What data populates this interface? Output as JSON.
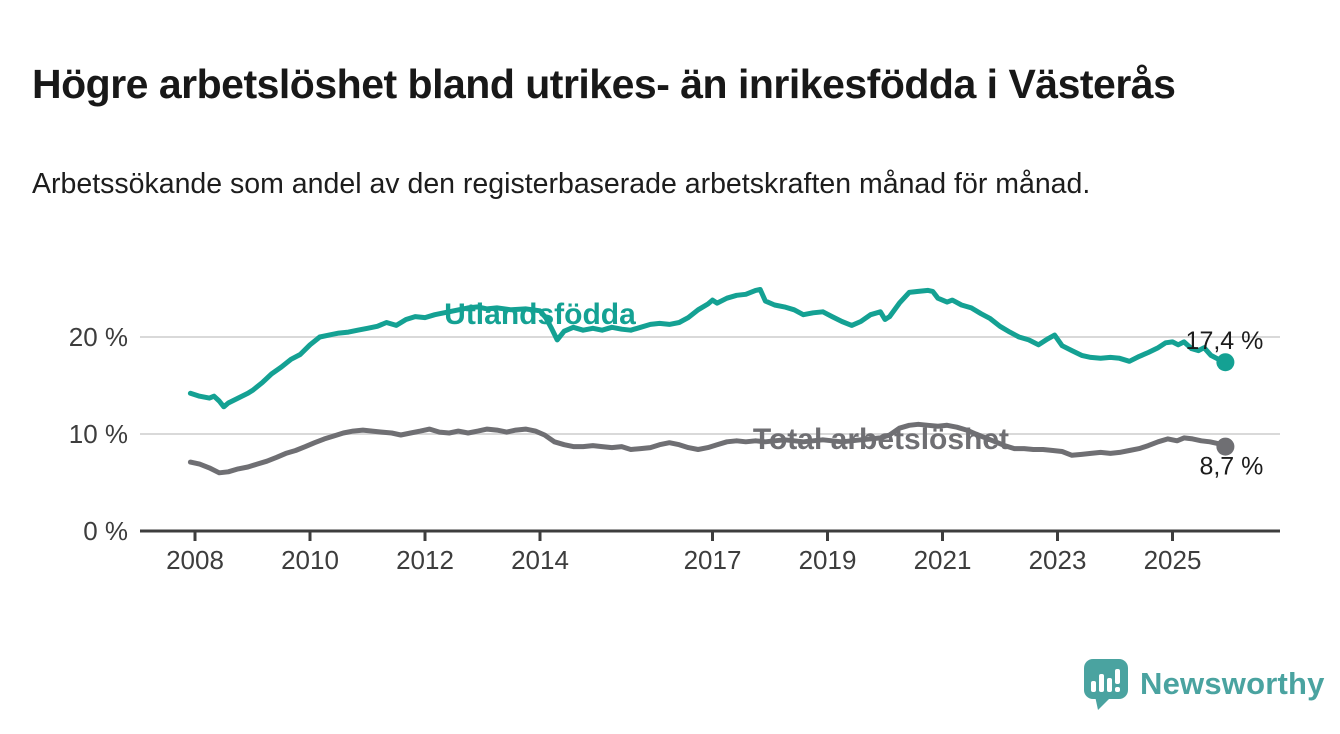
{
  "header": {
    "title": "Högre arbetslöshet bland utrikes- än inrikesfödda i Västerås",
    "subtitle": "Arbetssökande som andel av den registerbaserade arbetskraften månad för månad."
  },
  "footer": {
    "brand": "Newsworthy"
  },
  "colors": {
    "accent": "#14a193",
    "gray": "#6f6f73",
    "logo": "#4aa3a0",
    "text": "#1c1c1c",
    "axis_text": "#3d3d3d",
    "axis_line": "#3d3d3d",
    "grid": "#d9d9d9"
  },
  "chart_data": {
    "type": "line",
    "title": "Högre arbetslöshet bland utrikes- än inrikesfödda i Västerås",
    "subtitle": "Arbetssökande som andel av den registerbaserade arbetskraften månad för månad.",
    "legend": "inline-labels",
    "grid": "horizontal",
    "x_axis": {
      "ticks": [
        2008,
        2010,
        2012,
        2014,
        2017,
        2019,
        2021,
        2023,
        2025
      ],
      "range": [
        2007.75,
        2026.35
      ]
    },
    "y_axis": {
      "tick_values": [
        0,
        10,
        20
      ],
      "tick_labels": [
        "0 %",
        "10 %",
        "20 %"
      ],
      "range": [
        0,
        27.5
      ],
      "unit": "%"
    },
    "series": [
      {
        "name": "Utlandsfödda",
        "color": "#14a193",
        "end_label": "17,4 %",
        "end_value": 17.4,
        "label_anchor": {
          "year": 2014.0,
          "value": 22.5
        },
        "points": [
          [
            2007.92,
            14.2
          ],
          [
            2008.08,
            13.9
          ],
          [
            2008.25,
            13.7
          ],
          [
            2008.33,
            13.9
          ],
          [
            2008.42,
            13.4
          ],
          [
            2008.5,
            12.8
          ],
          [
            2008.58,
            13.2
          ],
          [
            2008.75,
            13.7
          ],
          [
            2008.92,
            14.2
          ],
          [
            2009.0,
            14.5
          ],
          [
            2009.17,
            15.3
          ],
          [
            2009.33,
            16.2
          ],
          [
            2009.5,
            16.9
          ],
          [
            2009.67,
            17.7
          ],
          [
            2009.83,
            18.2
          ],
          [
            2010.0,
            19.2
          ],
          [
            2010.17,
            20.0
          ],
          [
            2010.33,
            20.2
          ],
          [
            2010.5,
            20.4
          ],
          [
            2010.67,
            20.5
          ],
          [
            2010.83,
            20.7
          ],
          [
            2011.0,
            20.9
          ],
          [
            2011.17,
            21.1
          ],
          [
            2011.33,
            21.5
          ],
          [
            2011.5,
            21.2
          ],
          [
            2011.67,
            21.8
          ],
          [
            2011.83,
            22.1
          ],
          [
            2012.0,
            22.0
          ],
          [
            2012.17,
            22.3
          ],
          [
            2012.33,
            22.5
          ],
          [
            2012.5,
            22.7
          ],
          [
            2012.75,
            23.0
          ],
          [
            2012.92,
            23.1
          ],
          [
            2013.08,
            22.9
          ],
          [
            2013.25,
            23.0
          ],
          [
            2013.5,
            22.8
          ],
          [
            2013.75,
            22.9
          ],
          [
            2014.0,
            22.7
          ],
          [
            2014.1,
            22.0
          ],
          [
            2014.2,
            20.9
          ],
          [
            2014.3,
            19.7
          ],
          [
            2014.42,
            20.6
          ],
          [
            2014.58,
            21.0
          ],
          [
            2014.75,
            20.7
          ],
          [
            2014.92,
            20.9
          ],
          [
            2015.08,
            20.7
          ],
          [
            2015.25,
            21.0
          ],
          [
            2015.42,
            20.8
          ],
          [
            2015.58,
            20.7
          ],
          [
            2015.75,
            21.0
          ],
          [
            2015.92,
            21.3
          ],
          [
            2016.08,
            21.4
          ],
          [
            2016.25,
            21.3
          ],
          [
            2016.42,
            21.5
          ],
          [
            2016.58,
            22.0
          ],
          [
            2016.75,
            22.8
          ],
          [
            2016.92,
            23.4
          ],
          [
            2017.0,
            23.8
          ],
          [
            2017.08,
            23.5
          ],
          [
            2017.25,
            24.0
          ],
          [
            2017.42,
            24.3
          ],
          [
            2017.58,
            24.4
          ],
          [
            2017.75,
            24.8
          ],
          [
            2017.83,
            24.9
          ],
          [
            2017.92,
            23.7
          ],
          [
            2018.08,
            23.3
          ],
          [
            2018.25,
            23.1
          ],
          [
            2018.42,
            22.8
          ],
          [
            2018.58,
            22.3
          ],
          [
            2018.75,
            22.5
          ],
          [
            2018.92,
            22.6
          ],
          [
            2019.08,
            22.1
          ],
          [
            2019.25,
            21.6
          ],
          [
            2019.42,
            21.2
          ],
          [
            2019.58,
            21.6
          ],
          [
            2019.75,
            22.3
          ],
          [
            2019.92,
            22.6
          ],
          [
            2020.0,
            21.8
          ],
          [
            2020.08,
            22.1
          ],
          [
            2020.25,
            23.5
          ],
          [
            2020.42,
            24.6
          ],
          [
            2020.58,
            24.7
          ],
          [
            2020.75,
            24.8
          ],
          [
            2020.83,
            24.7
          ],
          [
            2020.92,
            24.0
          ],
          [
            2021.08,
            23.6
          ],
          [
            2021.17,
            23.8
          ],
          [
            2021.33,
            23.3
          ],
          [
            2021.5,
            23.0
          ],
          [
            2021.67,
            22.4
          ],
          [
            2021.83,
            21.9
          ],
          [
            2022.0,
            21.1
          ],
          [
            2022.17,
            20.5
          ],
          [
            2022.33,
            20.0
          ],
          [
            2022.5,
            19.7
          ],
          [
            2022.67,
            19.2
          ],
          [
            2022.83,
            19.8
          ],
          [
            2022.95,
            20.2
          ],
          [
            2023.08,
            19.1
          ],
          [
            2023.25,
            18.6
          ],
          [
            2023.42,
            18.1
          ],
          [
            2023.58,
            17.9
          ],
          [
            2023.75,
            17.8
          ],
          [
            2023.92,
            17.9
          ],
          [
            2024.08,
            17.8
          ],
          [
            2024.25,
            17.5
          ],
          [
            2024.42,
            18.0
          ],
          [
            2024.58,
            18.4
          ],
          [
            2024.75,
            18.9
          ],
          [
            2024.88,
            19.4
          ],
          [
            2025.0,
            19.5
          ],
          [
            2025.1,
            19.2
          ],
          [
            2025.2,
            19.5
          ],
          [
            2025.33,
            18.8
          ],
          [
            2025.45,
            18.6
          ],
          [
            2025.55,
            18.9
          ],
          [
            2025.67,
            18.1
          ],
          [
            2025.8,
            17.7
          ],
          [
            2025.92,
            17.4
          ]
        ]
      },
      {
        "name": "Total arbetslöshet",
        "color": "#6f6f73",
        "end_label": "8,7 %",
        "end_value": 8.7,
        "label_anchor": {
          "year": 2019.93,
          "value": 9.6
        },
        "points": [
          [
            2007.92,
            7.1
          ],
          [
            2008.08,
            6.9
          ],
          [
            2008.25,
            6.5
          ],
          [
            2008.42,
            6.0
          ],
          [
            2008.58,
            6.1
          ],
          [
            2008.75,
            6.4
          ],
          [
            2008.92,
            6.6
          ],
          [
            2009.08,
            6.9
          ],
          [
            2009.25,
            7.2
          ],
          [
            2009.42,
            7.6
          ],
          [
            2009.58,
            8.0
          ],
          [
            2009.75,
            8.3
          ],
          [
            2009.92,
            8.7
          ],
          [
            2010.08,
            9.1
          ],
          [
            2010.25,
            9.5
          ],
          [
            2010.42,
            9.8
          ],
          [
            2010.58,
            10.1
          ],
          [
            2010.75,
            10.3
          ],
          [
            2010.92,
            10.4
          ],
          [
            2011.08,
            10.3
          ],
          [
            2011.25,
            10.2
          ],
          [
            2011.42,
            10.1
          ],
          [
            2011.58,
            9.9
          ],
          [
            2011.75,
            10.1
          ],
          [
            2011.92,
            10.3
          ],
          [
            2012.08,
            10.5
          ],
          [
            2012.25,
            10.2
          ],
          [
            2012.42,
            10.1
          ],
          [
            2012.58,
            10.3
          ],
          [
            2012.75,
            10.1
          ],
          [
            2012.92,
            10.3
          ],
          [
            2013.08,
            10.5
          ],
          [
            2013.25,
            10.4
          ],
          [
            2013.42,
            10.2
          ],
          [
            2013.58,
            10.4
          ],
          [
            2013.75,
            10.5
          ],
          [
            2013.92,
            10.3
          ],
          [
            2014.08,
            9.9
          ],
          [
            2014.25,
            9.2
          ],
          [
            2014.42,
            8.9
          ],
          [
            2014.58,
            8.7
          ],
          [
            2014.75,
            8.7
          ],
          [
            2014.92,
            8.8
          ],
          [
            2015.08,
            8.7
          ],
          [
            2015.25,
            8.6
          ],
          [
            2015.42,
            8.7
          ],
          [
            2015.58,
            8.4
          ],
          [
            2015.75,
            8.5
          ],
          [
            2015.92,
            8.6
          ],
          [
            2016.08,
            8.9
          ],
          [
            2016.25,
            9.1
          ],
          [
            2016.42,
            8.9
          ],
          [
            2016.58,
            8.6
          ],
          [
            2016.75,
            8.4
          ],
          [
            2016.92,
            8.6
          ],
          [
            2017.08,
            8.9
          ],
          [
            2017.25,
            9.2
          ],
          [
            2017.42,
            9.3
          ],
          [
            2017.58,
            9.2
          ],
          [
            2017.75,
            9.3
          ],
          [
            2017.92,
            9.2
          ],
          [
            2018.08,
            9.3
          ],
          [
            2018.25,
            9.4
          ],
          [
            2018.42,
            9.3
          ],
          [
            2018.58,
            9.2
          ],
          [
            2018.75,
            9.3
          ],
          [
            2018.92,
            9.4
          ],
          [
            2019.08,
            9.3
          ],
          [
            2019.25,
            9.2
          ],
          [
            2019.42,
            9.3
          ],
          [
            2019.58,
            9.4
          ],
          [
            2019.75,
            9.5
          ],
          [
            2019.92,
            9.6
          ],
          [
            2020.08,
            9.9
          ],
          [
            2020.25,
            10.6
          ],
          [
            2020.42,
            10.9
          ],
          [
            2020.58,
            11.0
          ],
          [
            2020.75,
            10.9
          ],
          [
            2020.92,
            10.8
          ],
          [
            2021.08,
            10.9
          ],
          [
            2021.25,
            10.7
          ],
          [
            2021.42,
            10.4
          ],
          [
            2021.58,
            10.0
          ],
          [
            2021.75,
            9.6
          ],
          [
            2021.92,
            9.2
          ],
          [
            2022.08,
            8.8
          ],
          [
            2022.25,
            8.5
          ],
          [
            2022.42,
            8.5
          ],
          [
            2022.58,
            8.4
          ],
          [
            2022.75,
            8.4
          ],
          [
            2022.92,
            8.3
          ],
          [
            2023.08,
            8.2
          ],
          [
            2023.25,
            7.8
          ],
          [
            2023.42,
            7.9
          ],
          [
            2023.58,
            8.0
          ],
          [
            2023.75,
            8.1
          ],
          [
            2023.92,
            8.0
          ],
          [
            2024.08,
            8.1
          ],
          [
            2024.25,
            8.3
          ],
          [
            2024.42,
            8.5
          ],
          [
            2024.58,
            8.8
          ],
          [
            2024.75,
            9.2
          ],
          [
            2024.92,
            9.5
          ],
          [
            2025.08,
            9.3
          ],
          [
            2025.2,
            9.6
          ],
          [
            2025.35,
            9.5
          ],
          [
            2025.5,
            9.3
          ],
          [
            2025.65,
            9.2
          ],
          [
            2025.8,
            9.0
          ],
          [
            2025.92,
            8.7
          ]
        ]
      }
    ]
  }
}
